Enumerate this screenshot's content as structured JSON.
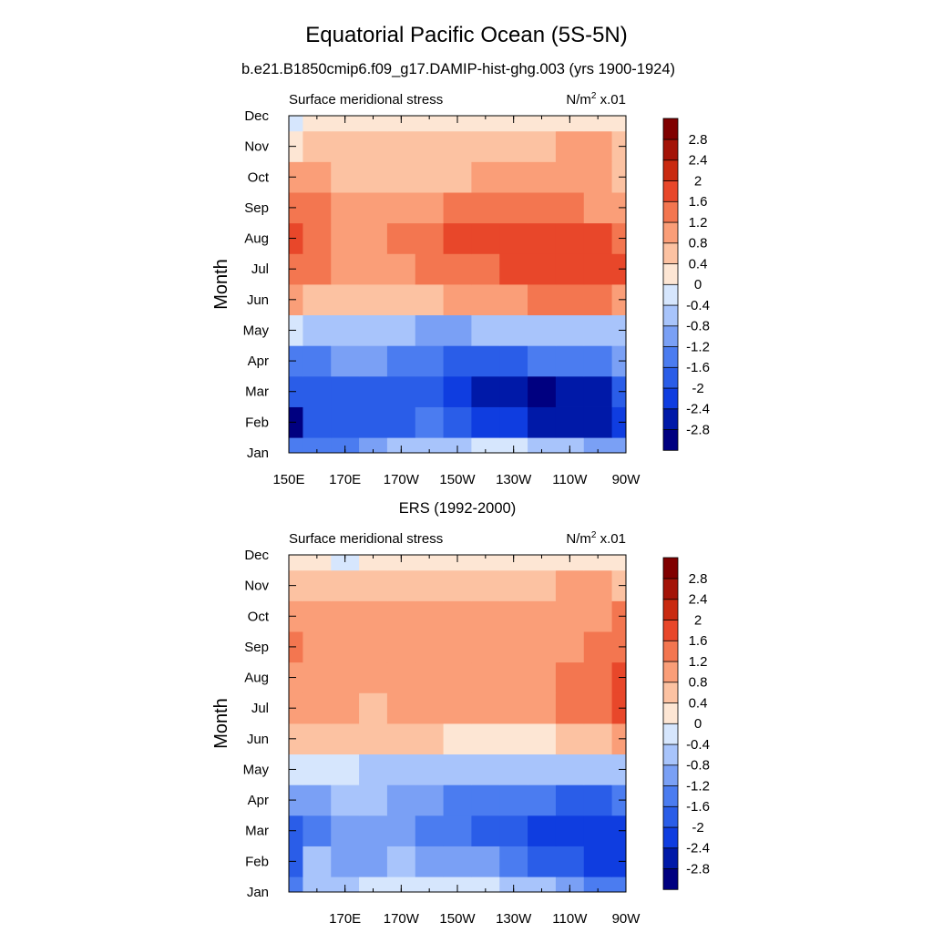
{
  "figure": {
    "title": "Equatorial Pacific Ocean (5S-5N)",
    "subtitle": "b.e21.B1850cmip6.f09_g17.DAMIP-hist-ghg.003 (yrs 1900-1924)"
  },
  "chart_data": [
    {
      "type": "heatmap",
      "panel_title": "",
      "left_string": "Surface meridional stress",
      "units_base": "N/m",
      "units_sup": "2",
      "units_scale": " x.01",
      "xlabel": "",
      "ylabel": "Month",
      "x_ticklabels": [
        "150E",
        "170E",
        "170W",
        "150W",
        "130W",
        "110W",
        "90W"
      ],
      "y_ticklabels": [
        "Jan",
        "Feb",
        "Mar",
        "Apr",
        "May",
        "Jun",
        "Jul",
        "Aug",
        "Sep",
        "Oct",
        "Nov",
        "Dec"
      ],
      "xlim_deg_east": [
        150,
        270
      ],
      "x": [
        150,
        160,
        170,
        180,
        190,
        200,
        210,
        220,
        230,
        240,
        250,
        260,
        270
      ],
      "y": [
        "Jan",
        "Feb",
        "Mar",
        "Apr",
        "May",
        "Jun",
        "Jul",
        "Aug",
        "Sep",
        "Oct",
        "Nov",
        "Dec"
      ],
      "values": [
        [
          -1.4,
          -1.5,
          -1.3,
          -1.0,
          -0.8,
          -0.6,
          -0.5,
          -0.4,
          -0.4,
          -0.5,
          -0.7,
          -0.9,
          -1.0
        ],
        [
          -3.0,
          -2.0,
          -1.9,
          -1.8,
          -1.7,
          -1.6,
          -1.8,
          -2.1,
          -2.3,
          -2.5,
          -2.6,
          -2.6,
          -2.3
        ],
        [
          -1.9,
          -1.9,
          -1.9,
          -1.9,
          -1.9,
          -2.0,
          -2.3,
          -2.6,
          -2.8,
          -3.0,
          -2.8,
          -2.5,
          -2.0
        ],
        [
          -1.3,
          -1.3,
          -1.2,
          -1.1,
          -1.3,
          -1.5,
          -1.7,
          -1.7,
          -1.7,
          -1.6,
          -1.5,
          -1.4,
          -1.2
        ],
        [
          -0.3,
          -0.5,
          -0.6,
          -0.6,
          -0.8,
          -0.9,
          -0.9,
          -0.8,
          -0.8,
          -0.7,
          -0.7,
          -0.6,
          -0.5
        ],
        [
          0.8,
          0.7,
          0.6,
          0.6,
          0.6,
          0.7,
          0.9,
          1.0,
          1.1,
          1.2,
          1.3,
          1.2,
          1.1
        ],
        [
          1.4,
          1.2,
          1.1,
          1.1,
          1.1,
          1.2,
          1.4,
          1.5,
          1.6,
          1.7,
          1.8,
          1.8,
          1.6
        ],
        [
          1.7,
          1.3,
          1.1,
          1.1,
          1.2,
          1.4,
          1.6,
          1.7,
          1.6,
          1.6,
          1.7,
          1.7,
          1.3
        ],
        [
          1.5,
          1.2,
          1.1,
          1.0,
          1.0,
          1.1,
          1.2,
          1.3,
          1.3,
          1.3,
          1.3,
          1.1,
          0.8
        ],
        [
          0.9,
          0.8,
          0.7,
          0.7,
          0.7,
          0.7,
          0.7,
          0.8,
          0.8,
          0.8,
          0.8,
          0.8,
          0.7
        ],
        [
          0.3,
          0.4,
          0.4,
          0.4,
          0.4,
          0.4,
          0.4,
          0.4,
          0.5,
          0.5,
          0.9,
          0.8,
          0.5
        ],
        [
          -0.1,
          0.1,
          0.2,
          0.2,
          0.2,
          0.2,
          0.3,
          0.3,
          0.3,
          0.2,
          0.2,
          0.3,
          0.2
        ]
      ],
      "colorbar_labels": [
        "2.8",
        "2.4",
        "2",
        "1.6",
        "1.2",
        "0.8",
        "0.4",
        "0",
        "-0.4",
        "-0.8",
        "-1.2",
        "-1.6",
        "-2",
        "-2.4",
        "-2.8"
      ],
      "levels": [
        -2.8,
        -2.4,
        -2.0,
        -1.6,
        -1.2,
        -0.8,
        -0.4,
        0,
        0.4,
        0.8,
        1.2,
        1.6,
        2.0,
        2.4,
        2.8
      ]
    },
    {
      "type": "heatmap",
      "panel_title": "ERS (1992-2000)",
      "left_string": "Surface meridional stress",
      "units_base": "N/m",
      "units_sup": "2",
      "units_scale": " x.01",
      "xlabel": "",
      "ylabel": "Month",
      "x_ticklabels": [
        "",
        "170E",
        "170W",
        "150W",
        "130W",
        "110W",
        "90W"
      ],
      "y_ticklabels": [
        "Jan",
        "Feb",
        "Mar",
        "Apr",
        "May",
        "Jun",
        "Jul",
        "Aug",
        "Sep",
        "Oct",
        "Nov",
        "Dec"
      ],
      "xlim_deg_east": [
        150,
        270
      ],
      "x": [
        150,
        160,
        170,
        180,
        190,
        200,
        210,
        220,
        230,
        240,
        250,
        260,
        270
      ],
      "y": [
        "Jan",
        "Feb",
        "Mar",
        "Apr",
        "May",
        "Jun",
        "Jul",
        "Aug",
        "Sep",
        "Oct",
        "Nov",
        "Dec"
      ],
      "values": [
        [
          -1.3,
          -0.6,
          -0.6,
          -0.4,
          -0.3,
          -0.3,
          -0.3,
          -0.4,
          -0.5,
          -0.8,
          -1.0,
          -1.3,
          -1.5
        ],
        [
          -1.7,
          -0.8,
          -1.0,
          -0.9,
          -0.7,
          -0.9,
          -1.0,
          -1.2,
          -1.5,
          -1.8,
          -2.0,
          -2.2,
          -2.3
        ],
        [
          -1.8,
          -1.3,
          -1.0,
          -1.0,
          -1.0,
          -1.3,
          -1.6,
          -1.8,
          -1.8,
          -2.2,
          -2.4,
          -2.4,
          -2.2
        ],
        [
          -1.0,
          -0.9,
          -0.8,
          -0.8,
          -0.9,
          -1.2,
          -1.3,
          -1.5,
          -1.6,
          -1.6,
          -1.7,
          -1.7,
          -1.6
        ],
        [
          -0.3,
          -0.3,
          -0.4,
          -0.5,
          -0.6,
          -0.6,
          -0.6,
          -0.7,
          -0.7,
          -0.8,
          -0.8,
          -0.7,
          -0.5
        ],
        [
          0.5,
          0.5,
          0.4,
          0.4,
          0.5,
          0.4,
          0.3,
          0.2,
          0.2,
          0.3,
          0.4,
          0.6,
          0.9
        ],
        [
          1.0,
          0.8,
          0.8,
          0.7,
          0.9,
          1.0,
          0.9,
          0.9,
          1.0,
          1.1,
          1.3,
          1.5,
          1.6
        ],
        [
          1.1,
          0.9,
          0.8,
          0.9,
          1.1,
          1.1,
          1.0,
          1.1,
          1.1,
          1.1,
          1.3,
          1.4,
          1.7
        ],
        [
          1.5,
          1.0,
          0.9,
          1.0,
          1.1,
          1.1,
          1.0,
          1.1,
          1.1,
          1.0,
          1.1,
          1.2,
          1.5
        ],
        [
          0.9,
          0.8,
          0.8,
          1.0,
          1.1,
          1.0,
          1.0,
          1.0,
          0.9,
          0.8,
          0.9,
          1.0,
          1.4
        ],
        [
          0.4,
          0.5,
          0.5,
          0.6,
          0.5,
          0.5,
          0.6,
          0.6,
          0.6,
          0.6,
          0.9,
          0.8,
          0.7
        ],
        [
          0.2,
          0.1,
          -0.1,
          0.1,
          0.2,
          0.0,
          0.1,
          0.2,
          0.2,
          0.2,
          0.3,
          0.3,
          0.3
        ]
      ],
      "colorbar_labels": [
        "2.8",
        "2.4",
        "2",
        "1.6",
        "1.2",
        "0.8",
        "0.4",
        "0",
        "-0.4",
        "-0.8",
        "-1.2",
        "-1.6",
        "-2",
        "-2.4",
        "-2.8"
      ],
      "levels": [
        -2.8,
        -2.4,
        -2.0,
        -1.6,
        -1.2,
        -0.8,
        -0.4,
        0,
        0.4,
        0.8,
        1.2,
        1.6,
        2.0,
        2.4,
        2.8
      ]
    }
  ],
  "colors": {
    "palette": [
      "#000080",
      "#0019a8",
      "#0f3de0",
      "#2a5de8",
      "#4b7cf0",
      "#7aa0f5",
      "#a8c4fb",
      "#d6e6fd",
      "#fde6d4",
      "#fcc2a2",
      "#fa9e78",
      "#f37650",
      "#e8472a",
      "#c92a10",
      "#a41408",
      "#800000"
    ]
  }
}
